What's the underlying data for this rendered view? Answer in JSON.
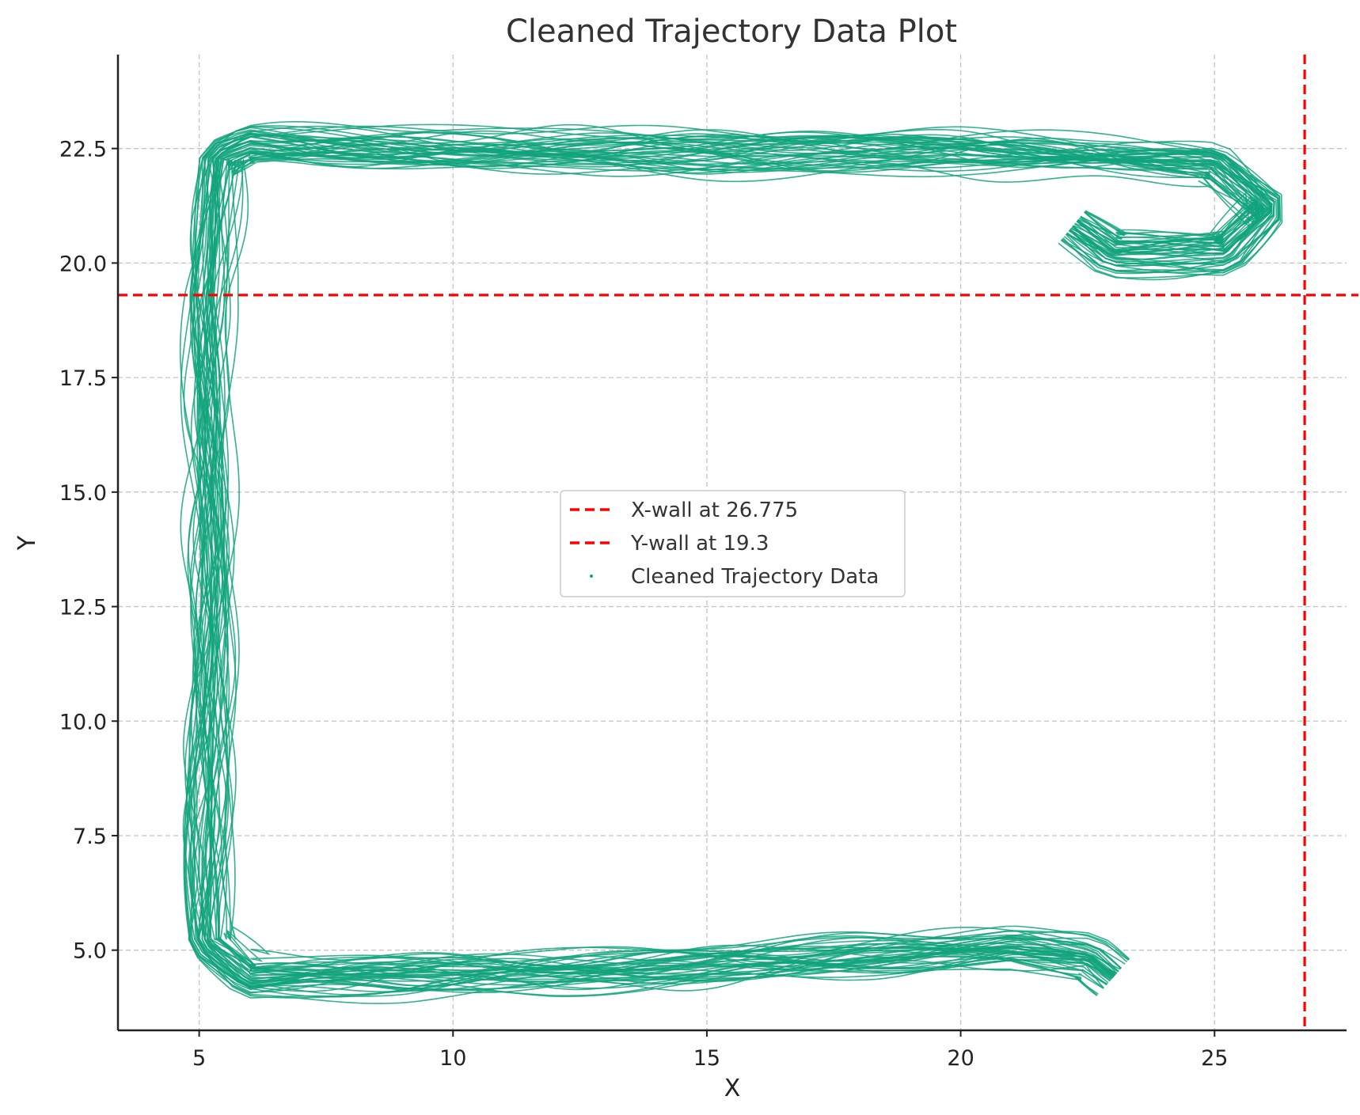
{
  "chart_data": {
    "type": "scatter",
    "title": "Cleaned Trajectory Data Plot",
    "xlabel": "X",
    "ylabel": "Y",
    "xlim": [
      3.4,
      27.6
    ],
    "ylim": [
      3.25,
      24.55
    ],
    "grid": true,
    "xticks": [
      5,
      10,
      15,
      20,
      25
    ],
    "xtick_labels": [
      "5",
      "10",
      "15",
      "20",
      "25"
    ],
    "yticks": [
      5.0,
      7.5,
      10.0,
      12.5,
      15.0,
      17.5,
      20.0,
      22.5
    ],
    "ytick_labels": [
      "5.0",
      "7.5",
      "10.0",
      "12.5",
      "15.0",
      "17.5",
      "20.0",
      "22.5"
    ],
    "legend_position": "center",
    "reference_lines": [
      {
        "orientation": "vertical",
        "value": 26.775,
        "label": "X-wall at 26.775",
        "color": "#ff0000",
        "style": "dashed"
      },
      {
        "orientation": "horizontal",
        "value": 19.3,
        "label": "Y-wall at 19.3",
        "color": "#ff0000",
        "style": "dashed"
      }
    ],
    "series": [
      {
        "name": "Cleaned Trajectory Data",
        "color": "#12a37c",
        "description_path": [
          [
            23.0,
            4.4
          ],
          [
            22.5,
            4.8
          ],
          [
            21.0,
            5.0
          ],
          [
            18.0,
            4.9
          ],
          [
            15.0,
            4.7
          ],
          [
            12.0,
            4.5
          ],
          [
            9.0,
            4.4
          ],
          [
            6.0,
            4.4
          ],
          [
            5.2,
            5.2
          ],
          [
            5.2,
            10.0
          ],
          [
            5.2,
            15.0
          ],
          [
            5.2,
            19.3
          ],
          [
            5.4,
            22.3
          ],
          [
            6.0,
            22.6
          ],
          [
            10.0,
            22.5
          ],
          [
            15.0,
            22.4
          ],
          [
            20.0,
            22.4
          ],
          [
            23.0,
            22.3
          ],
          [
            25.0,
            22.2
          ],
          [
            26.1,
            21.2
          ],
          [
            25.2,
            20.2
          ],
          [
            23.0,
            20.2
          ],
          [
            22.2,
            20.8
          ]
        ],
        "approx_extent": {
          "x": [
            4.5,
            26.3
          ],
          "y": [
            3.7,
            23.1
          ]
        }
      }
    ]
  },
  "legend": {
    "items": [
      {
        "label": "X-wall at 26.775",
        "symbol": "dashed-line",
        "color": "#ff0000"
      },
      {
        "label": "Y-wall at 19.3",
        "symbol": "dashed-line",
        "color": "#ff0000"
      },
      {
        "label": "Cleaned Trajectory Data",
        "symbol": "dot",
        "color": "#12a37c"
      }
    ]
  }
}
